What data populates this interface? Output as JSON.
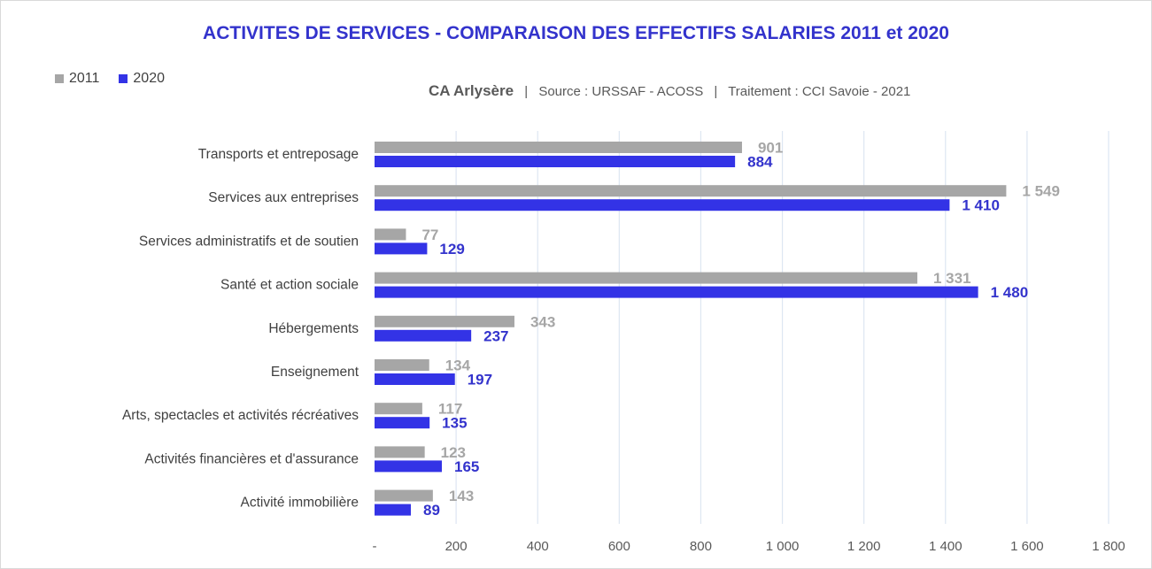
{
  "chart_data": {
    "type": "bar",
    "orientation": "horizontal",
    "title": "ACTIVITES DE SERVICES - COMPARAISON DES EFFECTIFS SALARIES 2011 et 2020",
    "subtitle": {
      "territory": "CA Arlysère",
      "separator": "|",
      "source": "Source : URSSAF - ACOSS",
      "processing": "Traitement : CCI Savoie - 2021"
    },
    "categories": [
      "Transports et entreposage",
      "Services aux entreprises",
      "Services administratifs et de soutien",
      "Santé et action sociale",
      "Hébergements",
      "Enseignement",
      "Arts, spectacles et activités récréatives",
      "Activités financières et d'assurance",
      "Activité immobilière"
    ],
    "series": [
      {
        "name": "2011",
        "color": "#a6a6a6",
        "values": [
          901,
          1549,
          77,
          1331,
          343,
          134,
          117,
          123,
          143
        ],
        "labels": [
          "901",
          "1 549",
          "77",
          "1 331",
          "343",
          "134",
          "117",
          "123",
          "143"
        ]
      },
      {
        "name": "2020",
        "color": "#3333e6",
        "values": [
          884,
          1410,
          129,
          1480,
          237,
          197,
          135,
          165,
          89
        ],
        "labels": [
          "884",
          "1 410",
          "129",
          "1 480",
          "237",
          "197",
          "135",
          "165",
          "89"
        ]
      }
    ],
    "xlim": [
      0,
      1800
    ],
    "xticks": [
      0,
      200,
      400,
      600,
      800,
      1000,
      1200,
      1400,
      1600,
      1800
    ],
    "xtick_labels": [
      "-",
      "200",
      "400",
      "600",
      "800",
      "1 000",
      "1 200",
      "1 400",
      "1 600",
      "1 800"
    ],
    "grid": "vertical",
    "legend_position": "top-left",
    "label_colors": {
      "2011": "#a6a6a6",
      "2020": "#3333cc"
    },
    "gridline_color": "#dde6f2"
  }
}
